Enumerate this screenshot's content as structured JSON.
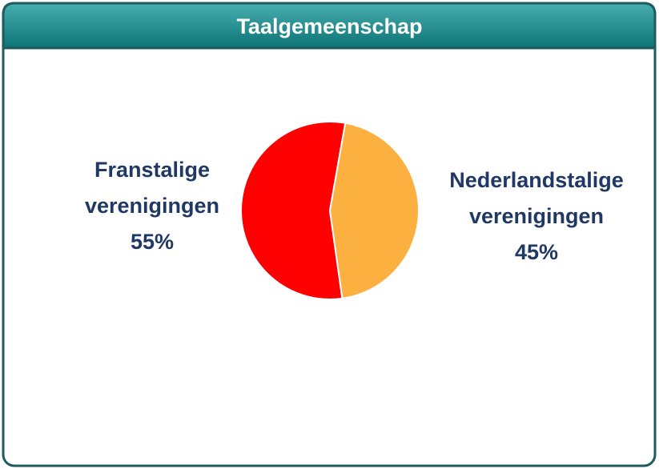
{
  "chart_data": {
    "type": "pie",
    "title": "Taalgemeenschap",
    "categories": [
      "Franstalige verenigingen",
      "Nederlandstalige verenigingen"
    ],
    "values": [
      55,
      45
    ],
    "value_labels": [
      "55%",
      "45%"
    ],
    "colors": [
      "#ff0000",
      "#fbb040"
    ]
  }
}
